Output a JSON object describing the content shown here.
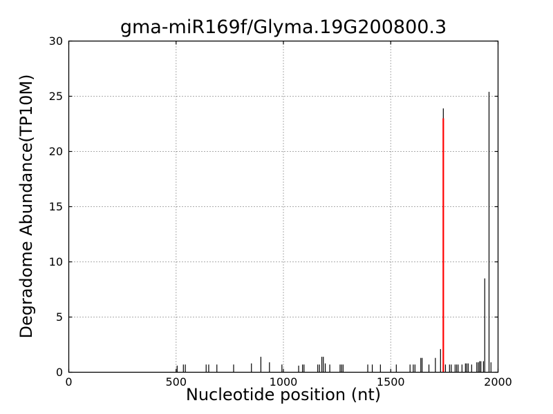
{
  "figure": {
    "background": "#ffffff",
    "frame_color": "#000000",
    "tick_color": "#000000",
    "text_color": "#000000"
  },
  "chart_data": {
    "type": "bar",
    "title": "gma-miR169f/Glyma.19G200800.3",
    "xlabel": "Nucleotide position (nt)",
    "ylabel": "Degradome Abundance(TP10M)",
    "xlim": [
      0,
      2000
    ],
    "ylim": [
      0,
      30
    ],
    "x_ticks": [
      0,
      500,
      1000,
      1500,
      2000
    ],
    "y_ticks": [
      0,
      5,
      10,
      15,
      20,
      25,
      30
    ],
    "grid": {
      "style": "dotted",
      "color": "#555555",
      "x_lines": [
        500,
        1000,
        1500
      ],
      "y_lines": [
        5,
        10,
        15,
        20,
        25
      ]
    },
    "legend": "none",
    "series": [
      {
        "name": "degradome-abundance",
        "color": "#000000",
        "line_width": 1.2,
        "points": [
          [
            505,
            0.6
          ],
          [
            534,
            0.7
          ],
          [
            543,
            0.7
          ],
          [
            640,
            0.7
          ],
          [
            652,
            0.7
          ],
          [
            690,
            0.7
          ],
          [
            768,
            0.7
          ],
          [
            851,
            0.8
          ],
          [
            895,
            1.4
          ],
          [
            935,
            0.9
          ],
          [
            993,
            0.7
          ],
          [
            1071,
            0.6
          ],
          [
            1089,
            0.7
          ],
          [
            1096,
            0.7
          ],
          [
            1160,
            0.7
          ],
          [
            1168,
            0.7
          ],
          [
            1179,
            1.4
          ],
          [
            1186,
            1.4
          ],
          [
            1195,
            0.8
          ],
          [
            1216,
            0.7
          ],
          [
            1264,
            0.7
          ],
          [
            1271,
            0.7
          ],
          [
            1278,
            0.7
          ],
          [
            1393,
            0.7
          ],
          [
            1414,
            0.7
          ],
          [
            1452,
            0.7
          ],
          [
            1526,
            0.7
          ],
          [
            1590,
            0.7
          ],
          [
            1605,
            0.7
          ],
          [
            1613,
            0.7
          ],
          [
            1640,
            1.3
          ],
          [
            1646,
            1.3
          ],
          [
            1678,
            0.7
          ],
          [
            1708,
            1.3
          ],
          [
            1732,
            2.1
          ],
          [
            1745,
            23.9
          ],
          [
            1755,
            0.7
          ],
          [
            1774,
            0.7
          ],
          [
            1782,
            0.7
          ],
          [
            1800,
            0.7
          ],
          [
            1807,
            0.7
          ],
          [
            1814,
            0.7
          ],
          [
            1832,
            0.7
          ],
          [
            1848,
            0.8
          ],
          [
            1854,
            0.8
          ],
          [
            1861,
            0.8
          ],
          [
            1877,
            0.7
          ],
          [
            1901,
            0.9
          ],
          [
            1908,
            0.9
          ],
          [
            1914,
            1.0
          ],
          [
            1920,
            1.0
          ],
          [
            1932,
            1.0
          ],
          [
            1938,
            8.5
          ],
          [
            1958,
            25.4
          ],
          [
            1967,
            0.9
          ]
        ]
      },
      {
        "name": "mirna-cleavage-site",
        "color": "#ff0000",
        "line_width": 2.2,
        "points": [
          [
            1745,
            23.0
          ]
        ]
      }
    ]
  }
}
